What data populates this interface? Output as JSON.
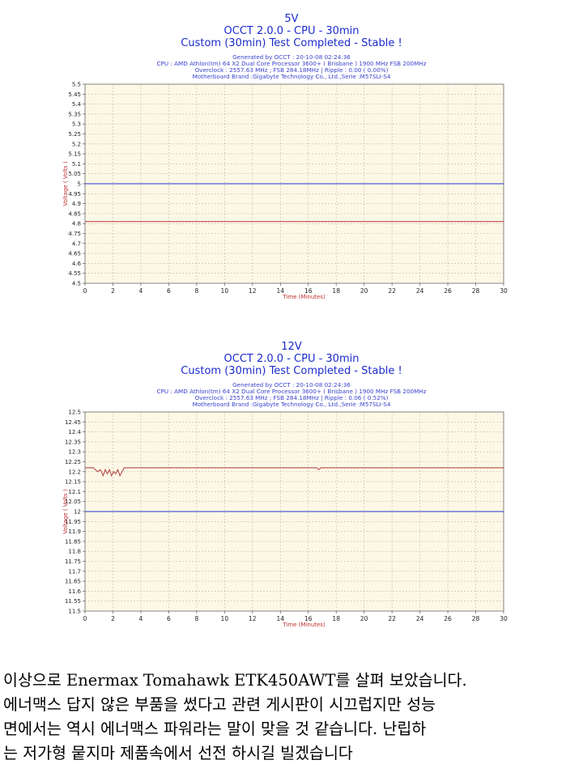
{
  "chart_data": [
    {
      "type": "line",
      "title": "5V",
      "subtitle": "OCCT 2.0.0 - CPU - 30min",
      "status": "Custom (30min) Test Completed - Stable !",
      "meta": {
        "generated": "Generated by OCCT : 20-10-08 02:24:36",
        "cpu": "CPU : AMD Athlon(tm) 64 X2 Dual Core Processor 3600+ ( Brisbane ) 1900 MHz FSB 200MHz",
        "overclock": "Overclock : 2557.63 MHz ; FSB 284.18MHz | Ripple : 0.00 ( 0.00%)",
        "motherboard": "Motherboard Brand :Gigabyte Technology Co., Ltd.,Serie :M57SLI-S4"
      },
      "xlabel": "Time (Minutes)",
      "ylabel": "Voltage ( Volts )",
      "xlim": [
        0,
        30
      ],
      "ylim": [
        4.5,
        5.5
      ],
      "ystep": 0.05,
      "xticks": [
        "0",
        "2",
        "4",
        "6",
        "8",
        "10",
        "12",
        "14",
        "16",
        "18",
        "20",
        "22",
        "24",
        "26",
        "28",
        "30"
      ],
      "yticks": [
        "5.5",
        "5.45",
        "5.4",
        "5.35",
        "5.3",
        "5.25",
        "5.2",
        "5.15",
        "5.1",
        "5.05",
        "5",
        "4.95",
        "4.9",
        "4.85",
        "4.8",
        "4.75",
        "4.7",
        "4.65",
        "4.6",
        "4.55",
        "4.5"
      ],
      "grid": true,
      "series": [
        {
          "color": "#2233cc",
          "x": [
            0,
            30
          ],
          "y": [
            5.0,
            5.0
          ]
        },
        {
          "color": "#b84a4a",
          "x": [
            0,
            30
          ],
          "y": [
            4.81,
            4.81
          ]
        }
      ]
    },
    {
      "type": "line",
      "title": "12V",
      "subtitle": "OCCT 2.0.0 - CPU - 30min",
      "status": "Custom (30min) Test Completed - Stable !",
      "meta": {
        "generated": "Generated by OCCT : 20-10-08 02:24:36",
        "cpu": "CPU : AMD Athlon(tm) 64 X2 Dual Core Processor 3600+ ( Brisbane ) 1900 MHz FSB 200MHz",
        "overclock": "Overclock : 2557.63 MHz ; FSB 284.18MHz | Ripple : 0.06 ( 0.52%)",
        "motherboard": "Motherboard Brand :Gigabyte Technology Co., Ltd.,Serie :M57SLI-S4"
      },
      "xlabel": "Time (Minutes)",
      "ylabel": "Voltage ( Volts )",
      "xlim": [
        0,
        30
      ],
      "ylim": [
        11.5,
        12.5
      ],
      "ystep": 0.05,
      "xticks": [
        "0",
        "2",
        "4",
        "6",
        "8",
        "10",
        "12",
        "14",
        "16",
        "18",
        "20",
        "22",
        "24",
        "26",
        "28",
        "30"
      ],
      "yticks": [
        "12.5",
        "12.45",
        "12.4",
        "12.35",
        "12.3",
        "12.25",
        "12.2",
        "12.15",
        "12.1",
        "12.05",
        "12",
        "11.95",
        "11.9",
        "11.85",
        "11.8",
        "11.75",
        "11.7",
        "11.65",
        "11.6",
        "11.55",
        "11.5"
      ],
      "grid": true,
      "series": [
        {
          "color": "#2233cc",
          "x": [
            0,
            30
          ],
          "y": [
            12.0,
            12.0
          ]
        },
        {
          "color": "#b84a4a",
          "x": [
            0,
            0.6,
            0.9,
            1.1,
            1.3,
            1.45,
            1.6,
            1.75,
            1.9,
            2.05,
            2.2,
            2.35,
            2.5,
            2.65,
            2.8,
            3.0,
            16.6,
            16.75,
            16.9,
            30
          ],
          "y": [
            12.22,
            12.22,
            12.2,
            12.21,
            12.18,
            12.21,
            12.19,
            12.21,
            12.18,
            12.2,
            12.19,
            12.21,
            12.18,
            12.2,
            12.22,
            12.22,
            12.22,
            12.21,
            12.22,
            12.22
          ]
        }
      ]
    }
  ],
  "body_text": [
    "이상으로 Enermax Tomahawk ETK450AWT를 살펴 보았습니다.",
    "에너맥스 답지 않은 부품을 썼다고 관련 게시판이 시끄럽지만 성능",
    "면에서는 역시 에너맥스 파워라는 말이 맞을 것 같습니다. 난립하",
    "는 저가형 뭍지마 제품속에서 선전 하시길 빌겠습니다"
  ]
}
